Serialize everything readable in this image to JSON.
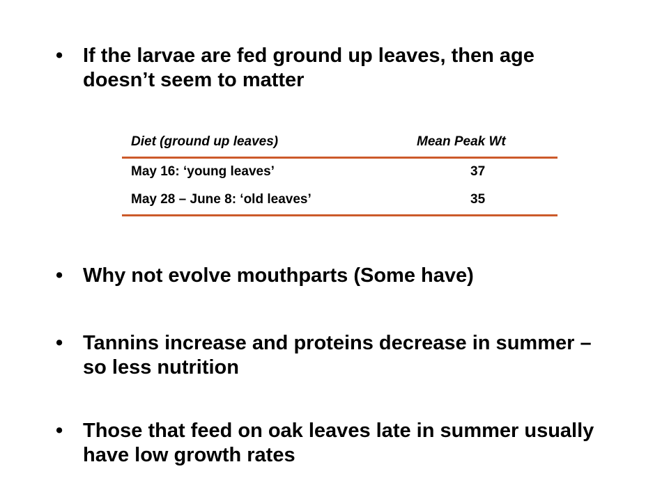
{
  "bullets": [
    "If the larvae are fed ground up leaves, then age doesn’t seem to matter",
    "Why not evolve mouthparts (Some have)",
    "Tannins increase and proteins decrease in summer – so less nutrition",
    "Those that feed on oak leaves late in summer usually have low growth rates"
  ],
  "bullet_glyph": "•",
  "table": {
    "headers": [
      "Diet (ground up leaves)",
      "Mean Peak Wt"
    ],
    "rows": [
      [
        "May 16:  ‘young leaves’",
        "37"
      ],
      [
        "May 28 – June 8:  ‘old leaves’",
        "35"
      ]
    ],
    "rule_color": "#cc5a2a"
  }
}
